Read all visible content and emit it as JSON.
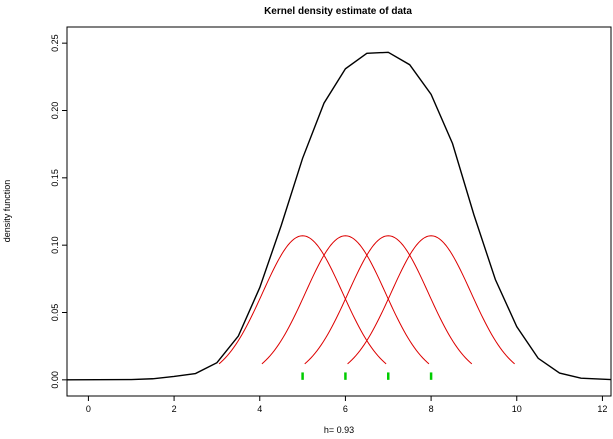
{
  "chart_data": {
    "type": "line",
    "title": "Kernel density estimate of data",
    "xlabel": "h= 0.93",
    "ylabel": "density function",
    "xlim": [
      -0.5,
      12.2
    ],
    "ylim": [
      -0.012,
      0.262
    ],
    "x_ticks": [
      "0",
      "2",
      "4",
      "6",
      "8",
      "10",
      "12"
    ],
    "y_ticks": [
      "0.00",
      "0.05",
      "0.10",
      "0.15",
      "0.20",
      "0.25"
    ],
    "data_points": [
      5,
      6,
      7,
      8
    ],
    "bandwidth": 0.93,
    "series": [
      {
        "role": "density",
        "color": "#000000",
        "x": [
          -0.5,
          1.0,
          1.5,
          2.0,
          2.5,
          3.0,
          3.5,
          4.0,
          4.5,
          5.0,
          5.5,
          6.0,
          6.5,
          7.0,
          7.5,
          8.0,
          8.5,
          9.0,
          9.5,
          10.0,
          10.5,
          11.0,
          11.5,
          12.2
        ],
        "y": [
          0.0,
          0.0002,
          0.0008,
          0.0025,
          0.0047,
          0.0127,
          0.0325,
          0.0685,
          0.1145,
          0.1645,
          0.2055,
          0.231,
          0.2425,
          0.2432,
          0.234,
          0.212,
          0.1755,
          0.1225,
          0.0745,
          0.0395,
          0.016,
          0.005,
          0.0012,
          0.0002
        ]
      },
      {
        "role": "kernels",
        "color": "#dd0000",
        "peak": 0.107,
        "centers": [
          5,
          6,
          7,
          8
        ],
        "extent": [
          -1.95,
          1.95
        ]
      }
    ]
  }
}
